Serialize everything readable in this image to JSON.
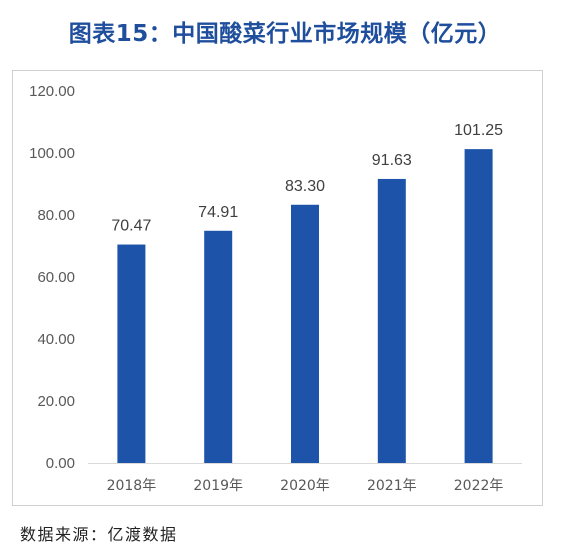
{
  "title": "图表15：中国酸菜行业市场规模（亿元）",
  "source": "数据来源：亿渡数据",
  "colors": {
    "title": "#1f4e9c",
    "bar": "#1d53a8",
    "frame": "#d0d0d0",
    "axis": "#d9d9d9"
  },
  "chart_data": {
    "type": "bar",
    "title": "",
    "xlabel": "",
    "ylabel": "",
    "categories": [
      "2018年",
      "2019年",
      "2020年",
      "2021年",
      "2022年"
    ],
    "values": [
      70.47,
      74.91,
      83.3,
      91.63,
      101.25
    ],
    "value_labels": [
      "70.47",
      "74.91",
      "83.30",
      "91.63",
      "101.25"
    ],
    "ylim": [
      0,
      120
    ],
    "yticks": [
      "0.00",
      "20.00",
      "40.00",
      "60.00",
      "80.00",
      "100.00",
      "120.00"
    ],
    "grid": false,
    "legend": "none"
  }
}
